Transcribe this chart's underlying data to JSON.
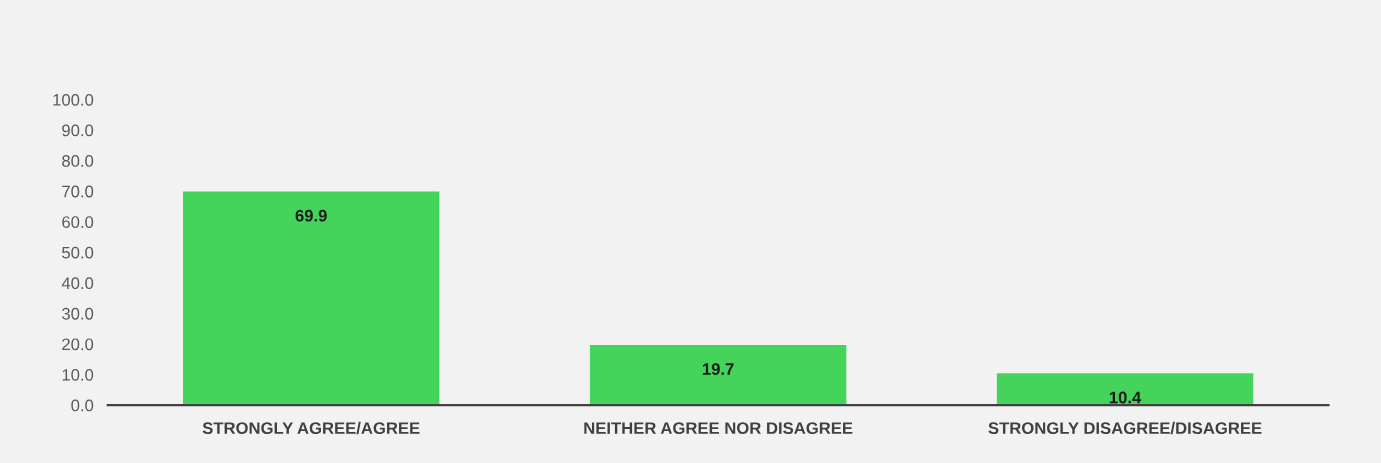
{
  "chart_data": {
    "type": "bar",
    "categories": [
      "STRONGLY AGREE/AGREE",
      "NEITHER AGREE NOR DISAGREE",
      "STRONGLY DISAGREE/DISAGREE"
    ],
    "values": [
      69.9,
      19.7,
      10.4
    ],
    "color": "#44d45c",
    "ylim": [
      0,
      100
    ],
    "yticks": [
      {
        "value": 0,
        "label": "0.0"
      },
      {
        "value": 10,
        "label": "10.0"
      },
      {
        "value": 20,
        "label": "20.0"
      },
      {
        "value": 30,
        "label": "30.0"
      },
      {
        "value": 40,
        "label": "40.0"
      },
      {
        "value": 50,
        "label": "50.0"
      },
      {
        "value": 60,
        "label": "60.0"
      },
      {
        "value": 70,
        "label": "70.0"
      },
      {
        "value": 80,
        "label": "80.0"
      },
      {
        "value": 90,
        "label": "90.0"
      },
      {
        "value": 100,
        "label": "100.0"
      }
    ],
    "data_labels": true,
    "grid": false,
    "legend": false
  }
}
